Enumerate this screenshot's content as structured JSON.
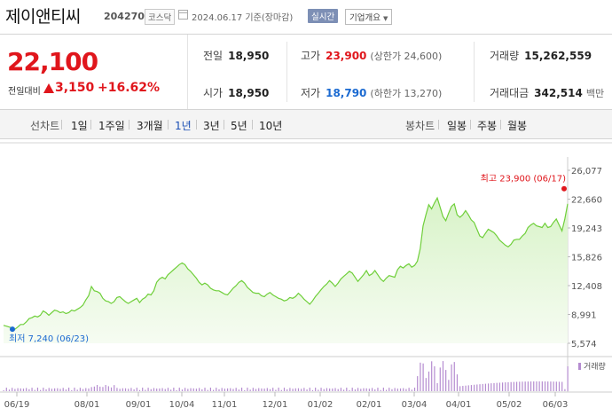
{
  "header": {
    "name": "제이앤티씨",
    "code": "204270",
    "market": "코스닥",
    "date_text": "2024.06.17 기준(장마감)",
    "realtime_label": "실시간",
    "company_button": "기업개요"
  },
  "summary": {
    "price": "22,100",
    "change_label": "전일대비",
    "change_value": "3,150",
    "change_pct": "+16.62%",
    "prev_close_label": "전일",
    "prev_close": "18,950",
    "open_label": "시가",
    "open": "18,950",
    "high_label": "고가",
    "high": "23,900",
    "upper_limit": "(상한가 24,600)",
    "low_label": "저가",
    "low": "18,790",
    "lower_limit": "(하한가 13,270)",
    "volume_label": "거래량",
    "volume": "15,262,559",
    "amount_label": "거래대금",
    "amount": "342,514",
    "amount_unit": "백만"
  },
  "tabs": {
    "line_chart": "선차트",
    "periods": [
      "1일",
      "1주일",
      "3개월",
      "1년",
      "3년",
      "5년",
      "10년"
    ],
    "active_period": "1년",
    "candle_chart": "봉차트",
    "candles": [
      "일봉",
      "주봉",
      "월봉"
    ]
  },
  "colors": {
    "up": "#e0161c",
    "down": "#1b6ad1",
    "line": "#6fcf3a",
    "area": "#d8f3c8",
    "volume": "#b58cd0"
  },
  "chart_data": {
    "type": "area",
    "y_ticks": [
      "26,077",
      "22,660",
      "19,243",
      "15,826",
      "12,408",
      "8,991",
      "5,574"
    ],
    "x_ticks": [
      "06/19",
      "08/01",
      "09/01",
      "10/04",
      "11/01",
      "12/01",
      "01/02",
      "02/01",
      "03/04",
      "04/01",
      "05/02",
      "06/03"
    ],
    "ylim": [
      5574,
      26077
    ],
    "high_annotation": "최고 23,900 (06/17)",
    "low_annotation": "최저 7,240 (06/23)",
    "volume_label": "거래량",
    "series": [
      {
        "values": [
          7700,
          7600,
          7500,
          7400,
          7240,
          7500,
          7800,
          7800,
          8100,
          8500,
          8600,
          8800,
          8700,
          8900,
          9400,
          9200,
          8900,
          9200,
          9500,
          9400,
          9200,
          9300,
          9100,
          9200,
          9500,
          9400,
          9600,
          9800,
          10100,
          10700,
          11200,
          12300,
          11800,
          11700,
          11500,
          10900,
          10600,
          10500,
          10300,
          10500,
          11000,
          11100,
          10800,
          10500,
          10300,
          10500,
          10700,
          10900,
          10400,
          10800,
          11000,
          11400,
          11300,
          11800,
          12800,
          13200,
          13400,
          13200,
          13700,
          14000,
          14300,
          14600,
          14900,
          15100,
          14900,
          14400,
          14100,
          13700,
          13300,
          12800,
          12500,
          12700,
          12500,
          12100,
          11900,
          11800,
          11800,
          11600,
          11400,
          11300,
          11700,
          12100,
          12400,
          12800,
          13000,
          12700,
          12200,
          11900,
          11600,
          11500,
          11500,
          11200,
          11100,
          11400,
          11600,
          11300,
          11100,
          10900,
          10800,
          10600,
          10700,
          11000,
          10900,
          11100,
          11500,
          11200,
          10800,
          10500,
          10200,
          10600,
          11100,
          11500,
          11900,
          12300,
          12600,
          13000,
          12700,
          12300,
          12700,
          13200,
          13500,
          13800,
          14100,
          13900,
          13400,
          12900,
          13300,
          13700,
          14200,
          13600,
          13800,
          14200,
          13700,
          13200,
          12900,
          13300,
          13600,
          13500,
          13400,
          14300,
          14700,
          14500,
          14800,
          15000,
          14600,
          14800,
          15300,
          16800,
          19500,
          20800,
          22000,
          21500,
          22200,
          22800,
          21700,
          20600,
          20100,
          21000,
          21800,
          22100,
          20800,
          20500,
          20800,
          21300,
          20800,
          20200,
          19900,
          19100,
          18300,
          18100,
          18600,
          19100,
          18900,
          18700,
          18300,
          17800,
          17500,
          17200,
          17000,
          17300,
          17800,
          17900,
          17900,
          18300,
          18600,
          19300,
          19600,
          19800,
          19500,
          19400,
          19300,
          19800,
          19300,
          19400,
          19900,
          20300,
          19600,
          18900,
          20300,
          22100
        ]
      }
    ]
  }
}
